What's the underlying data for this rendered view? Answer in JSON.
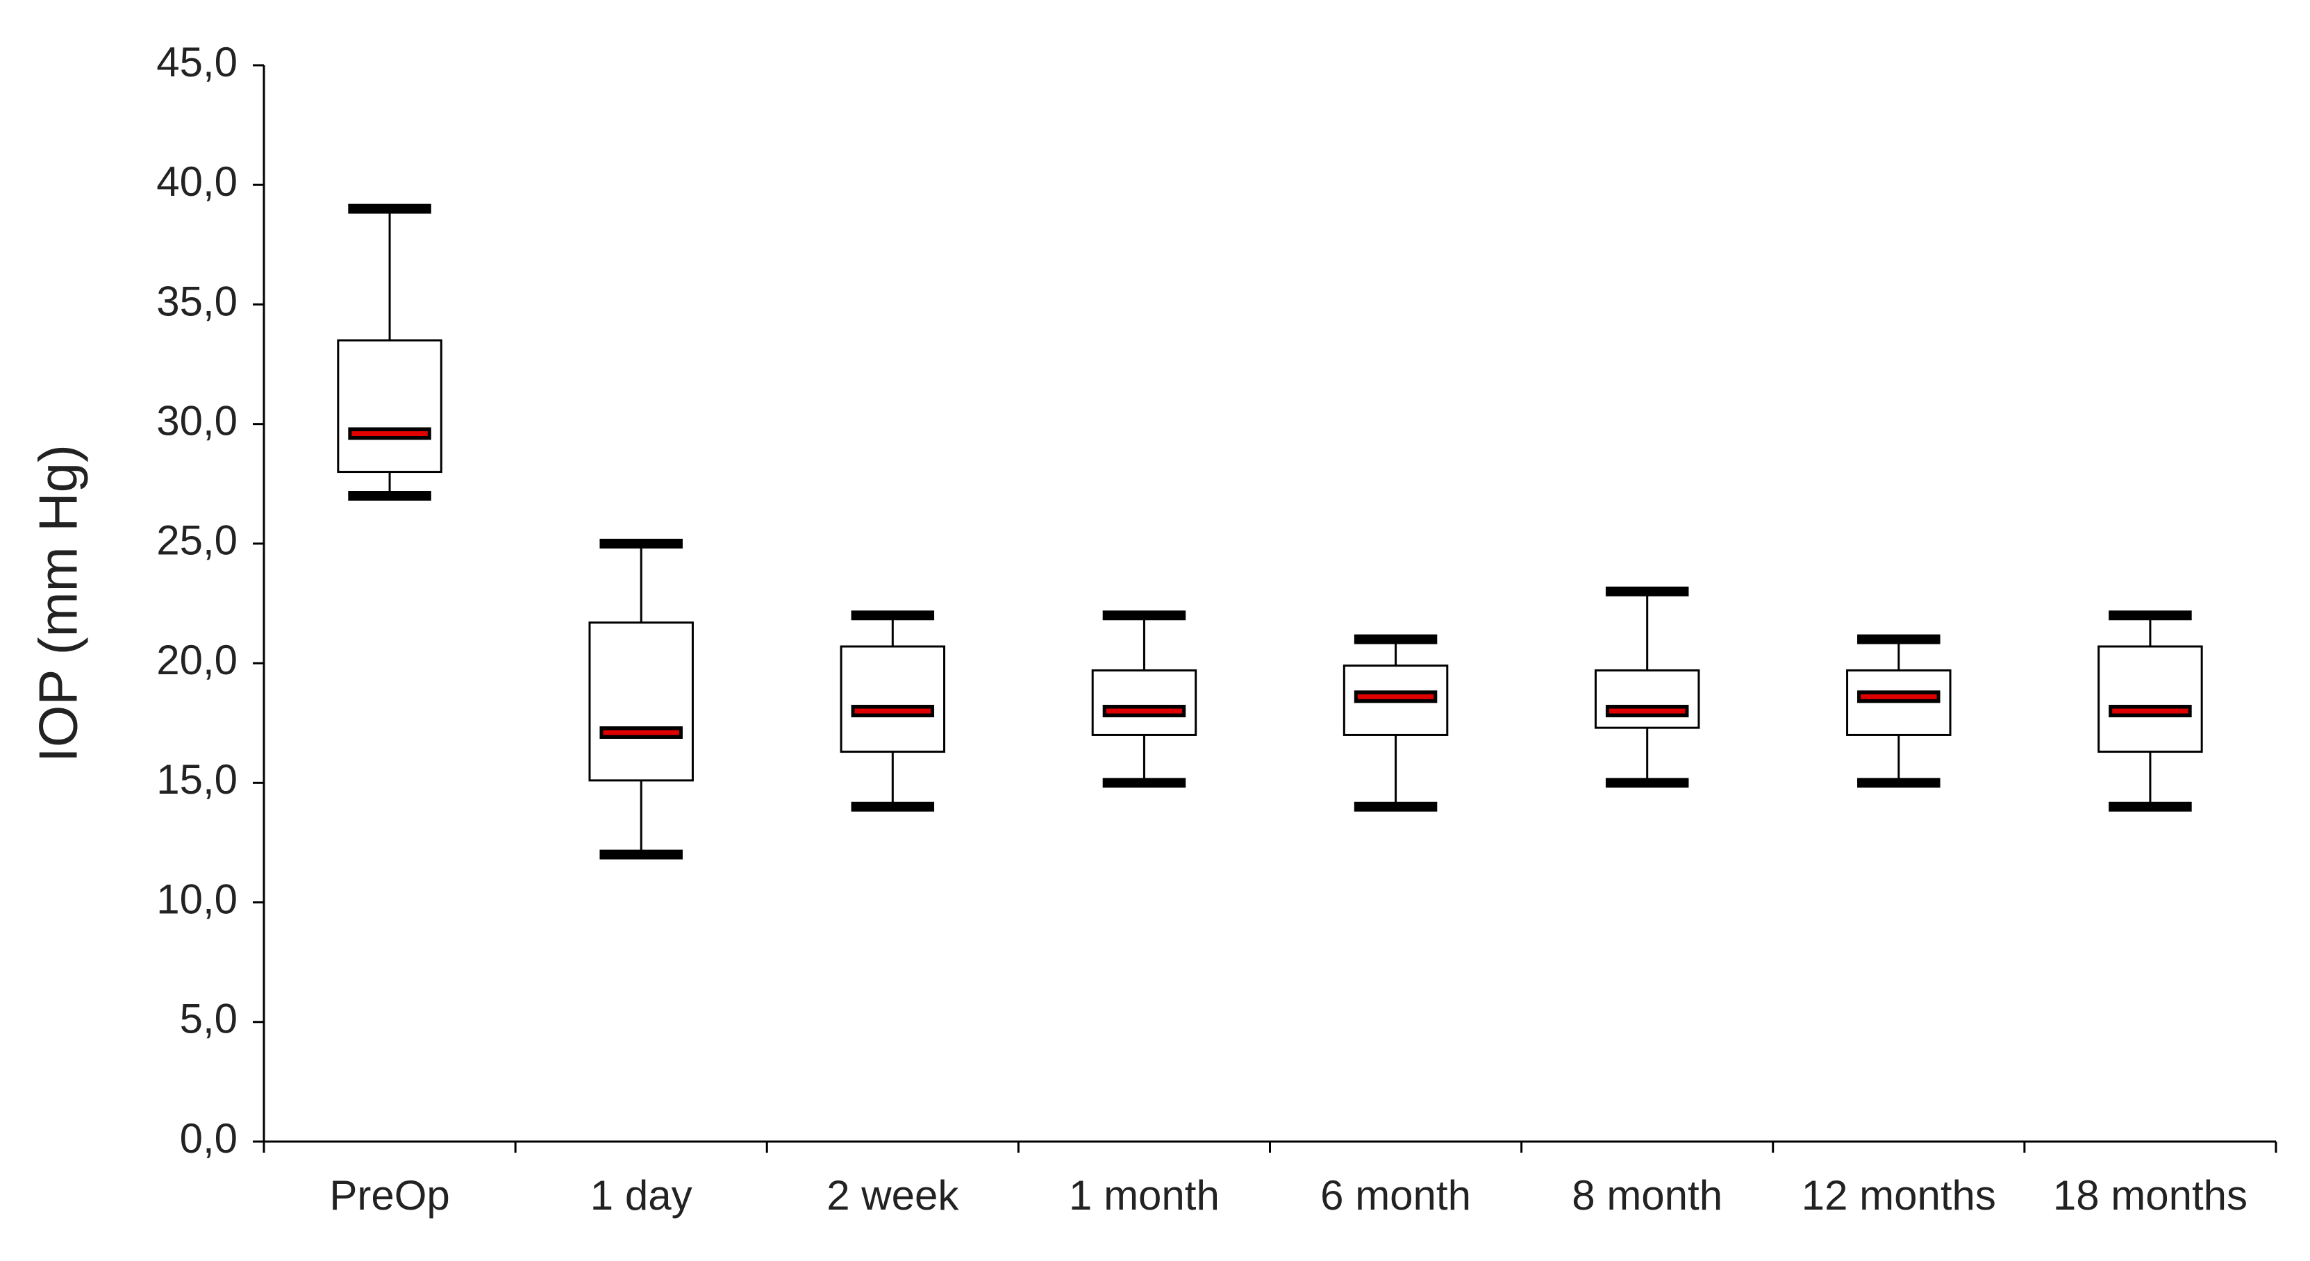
{
  "chart_data": {
    "type": "box",
    "y_label": "IOP (mm Hg)",
    "categories": [
      "PreOp",
      "1 day",
      "2 week",
      "1 month",
      "6 month",
      "8 month",
      "12 months",
      "18 months"
    ],
    "min": [
      27,
      12,
      14,
      15,
      14,
      15,
      15,
      14
    ],
    "q1": [
      28,
      15.1,
      16.3,
      17,
      17,
      17.3,
      17,
      16.3
    ],
    "median": [
      29.6,
      17.1,
      18,
      18,
      18.6,
      18,
      18.6,
      18
    ],
    "q3": [
      33.5,
      21.7,
      20.7,
      19.7,
      19.9,
      19.7,
      19.7,
      20.7
    ],
    "max": [
      39,
      25,
      22,
      22,
      21,
      23,
      21,
      22
    ],
    "box_color": "#ffffff",
    "median_color": "#e00000",
    "ylim": [
      0,
      45
    ],
    "yticks": [
      {
        "value": 0,
        "label": "0,0"
      },
      {
        "value": 5,
        "label": "5,0"
      },
      {
        "value": 10,
        "label": "10,0"
      },
      {
        "value": 15,
        "label": "15,0"
      },
      {
        "value": 20,
        "label": "20,0"
      },
      {
        "value": 25,
        "label": "25,0"
      },
      {
        "value": 30,
        "label": "30,0"
      },
      {
        "value": 35,
        "label": "35,0"
      },
      {
        "value": 40,
        "label": "40,0"
      },
      {
        "value": 45,
        "label": "45,0"
      }
    ],
    "grid": false
  }
}
